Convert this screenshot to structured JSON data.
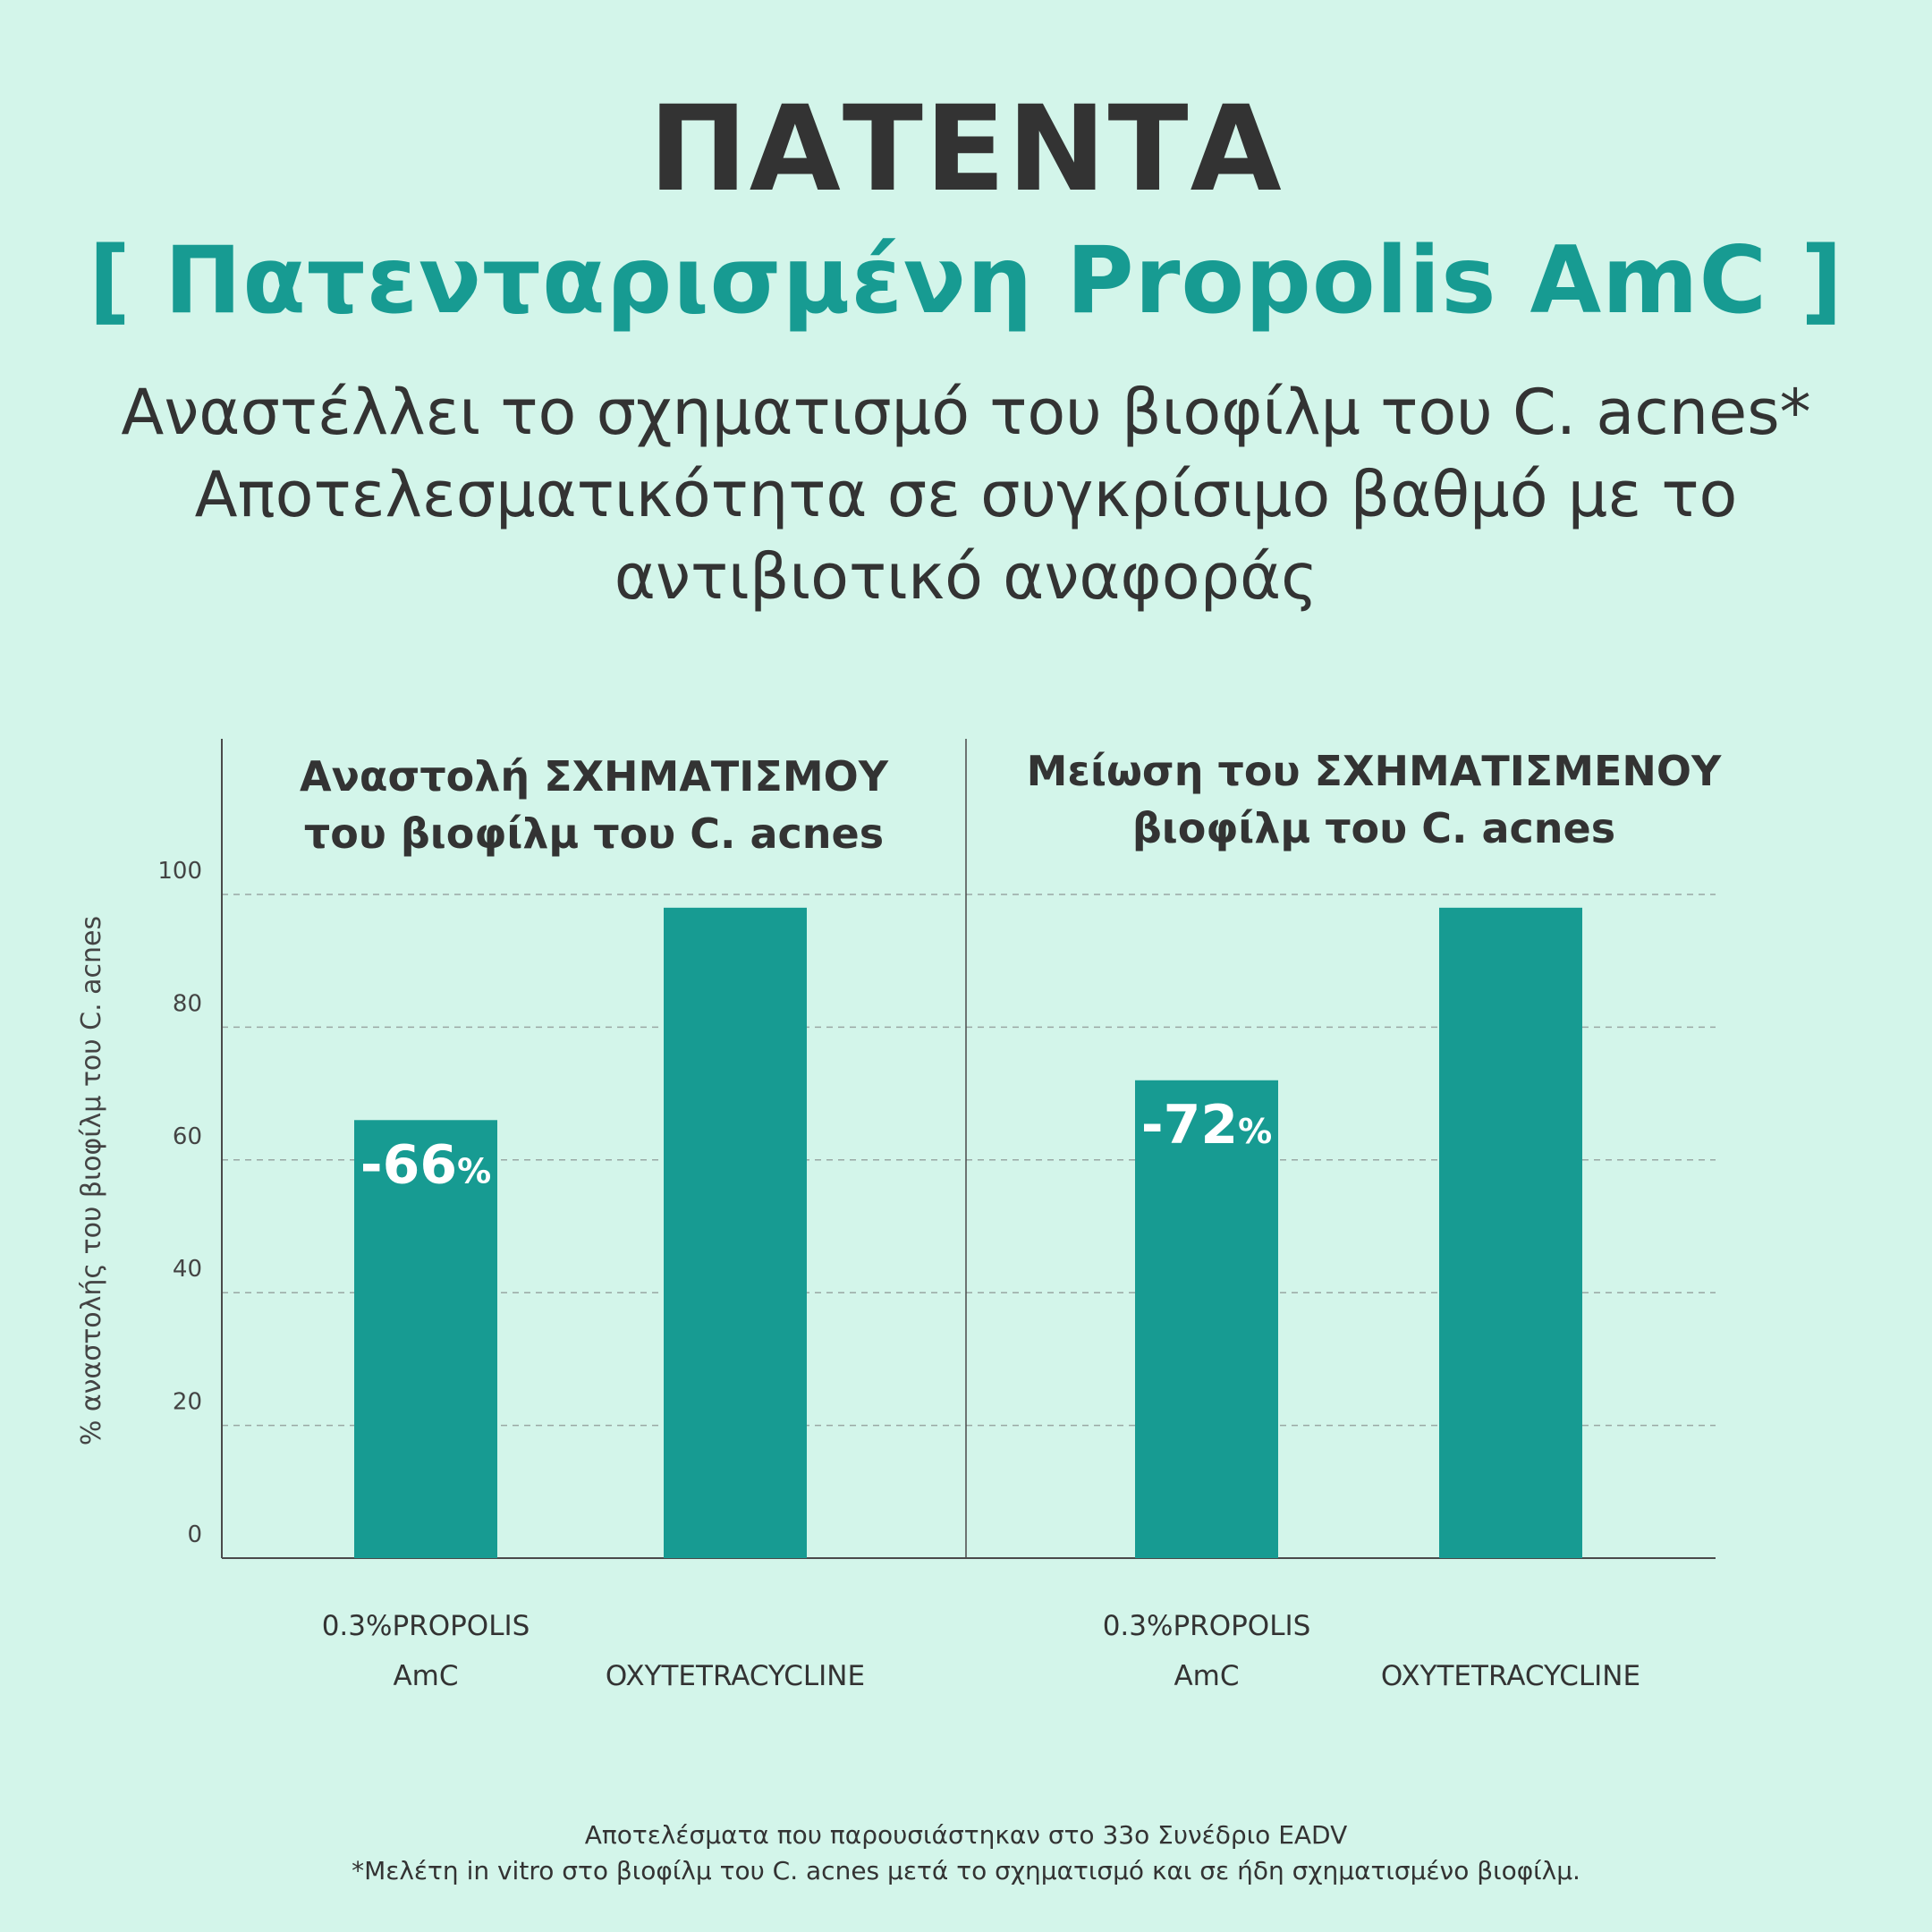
{
  "header": {
    "title": "ΠΑΤΕΝΤΑ",
    "subtitle": "[ Πατενταρισμένη Propolis AmC ]",
    "lines": [
      "Αναστέλλει το σχηματισμό του βιοφίλμ του C. acnes*",
      "Αποτελεσματικότητα σε συγκρίσιμο βαθμό με το",
      "αντιβιοτικό αναφοράς"
    ]
  },
  "colors": {
    "background": "#d3f5ea",
    "bar": "#179b92",
    "title": "#333333",
    "accent": "#179b92"
  },
  "chart_data": {
    "type": "bar",
    "ylabel": "% αναστολής του βιοφίλμ του C. acnes",
    "ylim": [
      0,
      100
    ],
    "yticks": [
      0,
      20,
      40,
      60,
      80,
      100
    ],
    "grid": true,
    "panels": [
      {
        "title_lines": [
          "Αναστολή ΣΧΗΜΑΤΙΣΜΟΥ",
          "του βιοφίλμ του C. acnes"
        ],
        "categories": [
          [
            "0.3%PROPOLIS",
            "AmC"
          ],
          [
            "OXYTETRACYCLINE"
          ]
        ],
        "values": [
          66,
          98
        ],
        "data_labels": [
          "-66%",
          ""
        ]
      },
      {
        "title_lines": [
          "Μείωση του ΣΧΗΜΑΤΙΣΜΕΝΟΥ",
          "βιοφίλμ του C. acnes"
        ],
        "categories": [
          [
            "0.3%PROPOLIS",
            "AmC"
          ],
          [
            "OXYTETRACYCLINE"
          ]
        ],
        "values": [
          72,
          98
        ],
        "data_labels": [
          "-72%",
          ""
        ]
      }
    ]
  },
  "footnotes": [
    "Αποτελέσματα που παρουσιάστηκαν στο 33ο Συνέδριο EADV",
    "*Μελέτη in vitro στο βιοφίλμ του C. acnes μετά το σχηματισμό και σε ήδη σχηματισμένο βιοφίλμ."
  ]
}
